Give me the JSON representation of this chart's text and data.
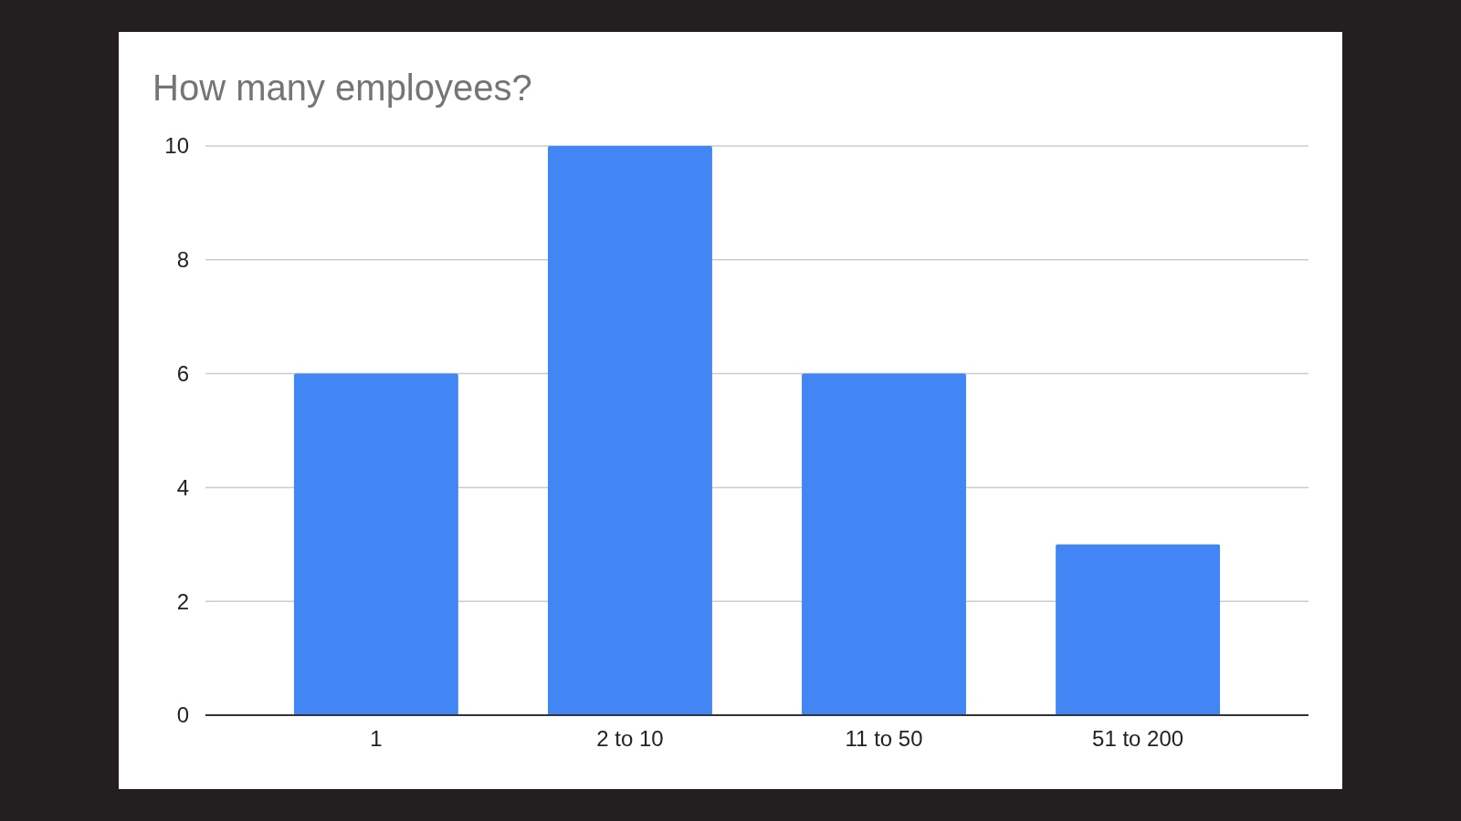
{
  "chart_data": {
    "type": "bar",
    "title": "How many employees?",
    "categories": [
      "1",
      "2 to 10",
      "11 to 50",
      "51 to 200"
    ],
    "values": [
      6,
      10,
      6,
      3
    ],
    "color": "#4285f4",
    "ylim": [
      0,
      10
    ],
    "yticks": [
      0,
      2,
      4,
      6,
      8,
      10
    ],
    "grid": "y"
  }
}
